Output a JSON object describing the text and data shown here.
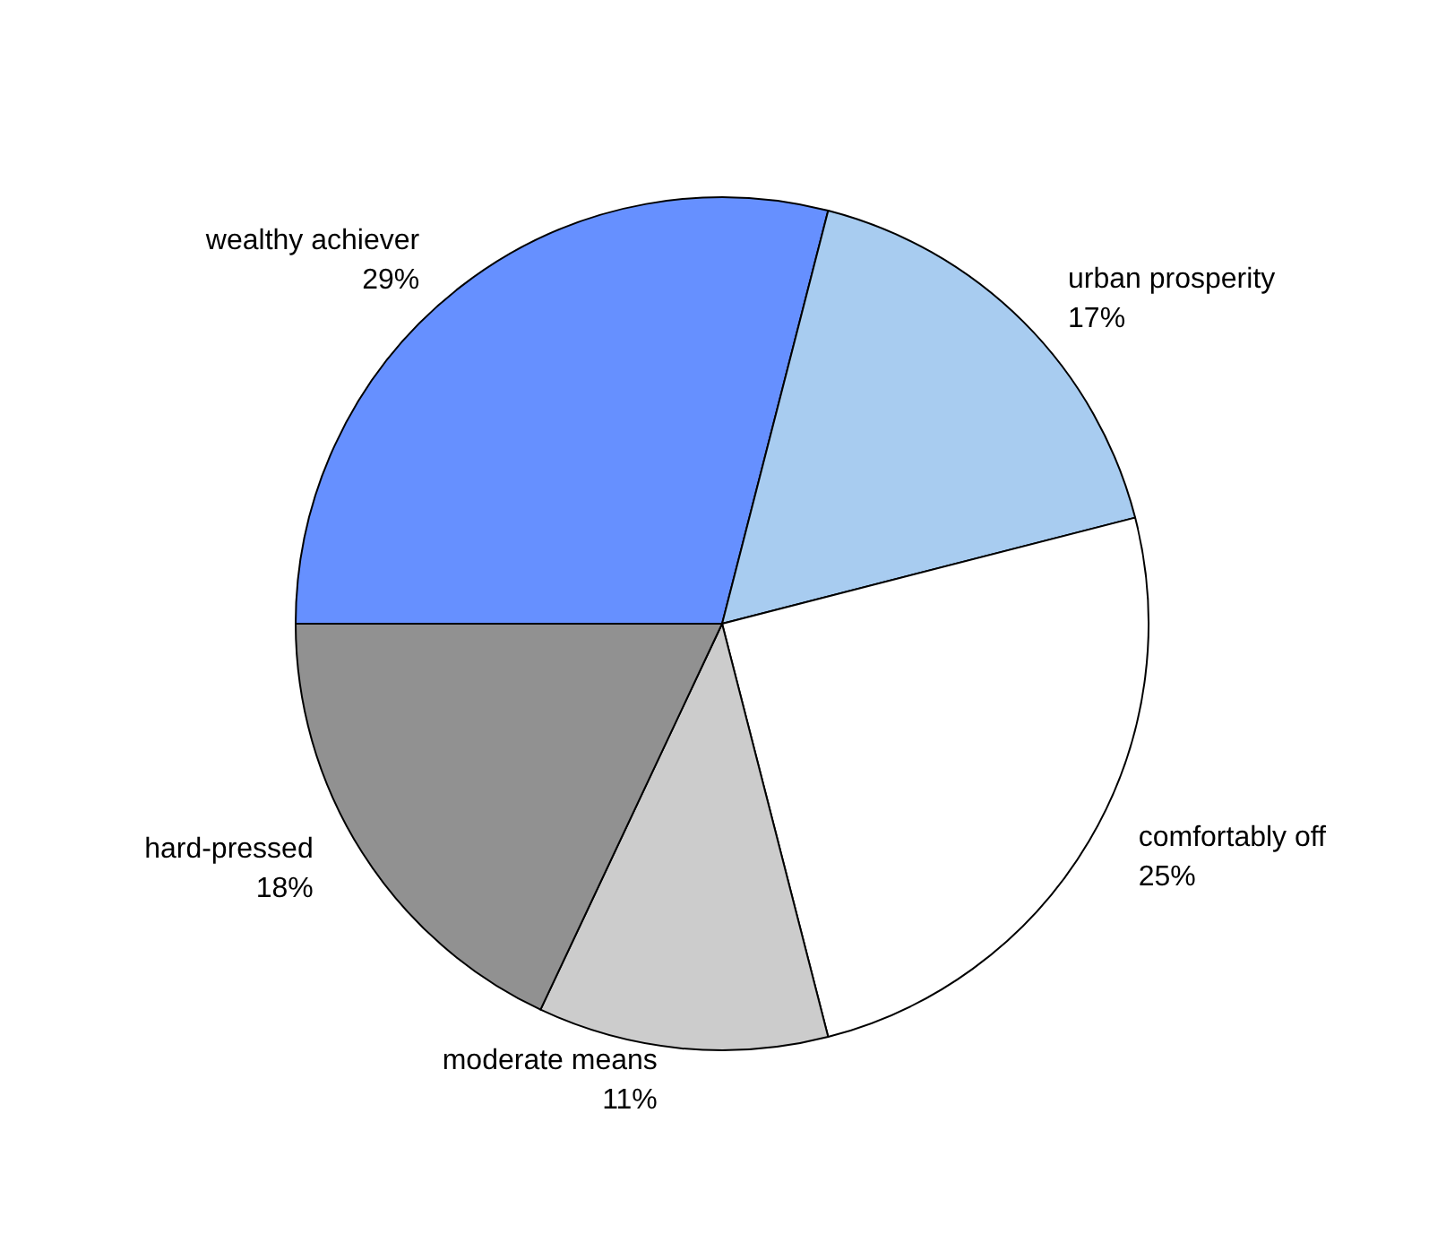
{
  "chart_data": {
    "type": "pie",
    "categories": [
      "wealthy achiever",
      "urban prosperity",
      "comfortably off",
      "moderate means",
      "hard-pressed"
    ],
    "values": [
      29,
      17,
      25,
      11,
      18
    ],
    "value_labels": [
      "29%",
      "17%",
      "25%",
      "11%",
      "18%"
    ],
    "colors": [
      "#6690ff",
      "#a8ccf0",
      "#ffffff",
      "#cccccc",
      "#919191"
    ],
    "legend": false
  }
}
